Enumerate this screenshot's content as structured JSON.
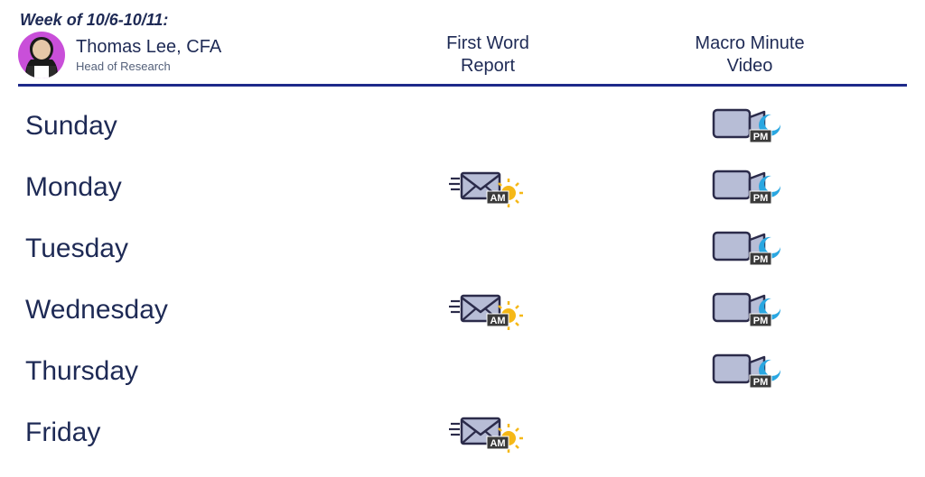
{
  "week_label": "Week of 10/6-10/11:",
  "author": {
    "name": "Thomas Lee, CFA",
    "title": "Head of Research",
    "avatar_bg": "#c94fd9"
  },
  "columns": {
    "day": "",
    "first_word_line1": "First Word",
    "first_word_line2": "Report",
    "macro_line1": "Macro Minute",
    "macro_line2": "Video"
  },
  "badges": {
    "am": "AM",
    "pm": "PM"
  },
  "days": {
    "0": {
      "label": "Sunday",
      "email_am": false,
      "video_pm": true
    },
    "1": {
      "label": "Monday",
      "email_am": true,
      "video_pm": true
    },
    "2": {
      "label": "Tuesday",
      "email_am": false,
      "video_pm": true
    },
    "3": {
      "label": "Wednesday",
      "email_am": true,
      "video_pm": true
    },
    "4": {
      "label": "Thursday",
      "email_am": false,
      "video_pm": true
    },
    "5": {
      "label": "Friday",
      "email_am": true,
      "video_pm": false
    }
  },
  "colors": {
    "text": "#1e2a55",
    "divider": "#1e2a8a",
    "icon_fill": "#b7bdd6",
    "icon_stroke": "#2b2b4a",
    "badge_bg": "#3a3a3a",
    "badge_text": "#ffffff",
    "sun": "#f5b817",
    "moon": "#2aa7e1"
  }
}
